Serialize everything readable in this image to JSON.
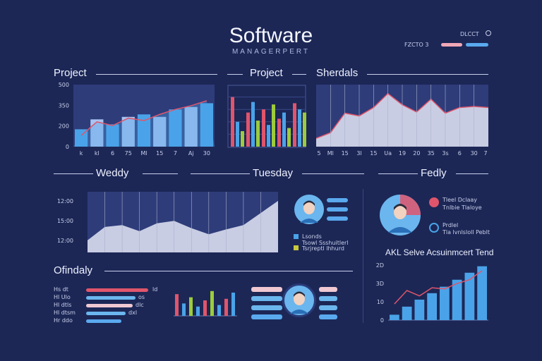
{
  "header": {
    "title": "Software",
    "subtitle": "MANAGERPERT",
    "top_right_label": "DLCCT",
    "top_right_sub": "FZCTO 3"
  },
  "sections": {
    "s1": "Project",
    "s2": "Project",
    "s3": "Sherdals",
    "s4": "Weddy",
    "s5": "Tuesday",
    "s6": "Fedly",
    "s7": "Ofindaly",
    "s8": "AKL Selve Acsuinmcert Tend"
  },
  "legend_mid": {
    "items": [
      "Lsonds",
      "Tsowl Ssshuitlerl",
      "Tsrjreptl lhhurd"
    ]
  },
  "legend_right": {
    "items": [
      "Tleel Dclaay",
      "Tnlbie Tlaloye"
    ],
    "items2": [
      "Prdlel",
      "Tla lvnlsloll Peblt"
    ]
  },
  "bars_left": {
    "labels": [
      "Hs dt",
      "Hl Ulo",
      "Hl dtls",
      "Hl dtsm",
      "Hr ddo"
    ],
    "tags": [
      "ld",
      "os",
      "dlc",
      "dxl",
      ""
    ]
  },
  "chart_data": [
    {
      "type": "bar",
      "name": "project-bar-line",
      "categories": [
        "k",
        "kl",
        "6",
        "75",
        "Ml",
        "15",
        "7",
        "Aj",
        "30"
      ],
      "values": [
        140,
        220,
        180,
        240,
        260,
        240,
        300,
        320,
        350
      ],
      "line": [
        90,
        200,
        170,
        230,
        210,
        260,
        300,
        330,
        370
      ],
      "yticks": [
        "0",
        "200",
        "350",
        "500"
      ],
      "ylim": [
        0,
        500
      ],
      "colors": {
        "bar_a": "#4aa3e8",
        "bar_b": "#a9c4f0",
        "line": "#e0556b"
      }
    },
    {
      "type": "bar",
      "name": "project-grouped",
      "values": [
        [
          80,
          55,
          60,
          45,
          70
        ],
        [
          40,
          72,
          35,
          55,
          60
        ],
        [
          25,
          42,
          68,
          30,
          55
        ]
      ],
      "ylim": [
        0,
        100
      ],
      "colors": [
        "#e0556b",
        "#4aa3e8",
        "#9ccc3c"
      ]
    },
    {
      "type": "area",
      "name": "sherdals-area",
      "categories": [
        "5",
        "Ml",
        "15",
        "3l",
        "15",
        "Ua",
        "19",
        "20",
        "35",
        "3s",
        "6",
        "30",
        "7"
      ],
      "values": [
        15,
        25,
        60,
        55,
        70,
        95,
        75,
        62,
        85,
        60,
        70,
        72,
        70
      ],
      "ylim": [
        0,
        100
      ],
      "colors": {
        "fill": "#c9cde3",
        "line": "#e0556b"
      }
    },
    {
      "type": "area",
      "name": "weddy-area",
      "yticks": [
        "12:00",
        "15:00",
        "12:00"
      ],
      "values": [
        20,
        42,
        45,
        35,
        48,
        52,
        40,
        30,
        38,
        45,
        65,
        85
      ],
      "ylim": [
        0,
        100
      ],
      "colors": {
        "fill": "#c9cde3"
      }
    },
    {
      "type": "bar",
      "name": "ofindaly-bars",
      "values": [
        70,
        40,
        60,
        30,
        50,
        80,
        35,
        55,
        75
      ],
      "ylim": [
        0,
        100
      ],
      "colors": [
        "#e0556b",
        "#4aa3e8",
        "#9ccc3c",
        "#4aa3e8",
        "#e0556b",
        "#9ccc3c",
        "#4aa3e8",
        "#e0556b",
        "#4aa3e8"
      ]
    },
    {
      "type": "bar",
      "name": "trend-bars",
      "yticks": [
        "0",
        "10",
        "3D",
        "2D"
      ],
      "values": [
        10,
        25,
        38,
        50,
        62,
        75,
        88,
        100
      ],
      "line": [
        30,
        55,
        45,
        60,
        58,
        68,
        75,
        92
      ],
      "ylim": [
        0,
        110
      ],
      "colors": {
        "bar": "#4aa3e8",
        "line": "#e0556b"
      }
    }
  ]
}
